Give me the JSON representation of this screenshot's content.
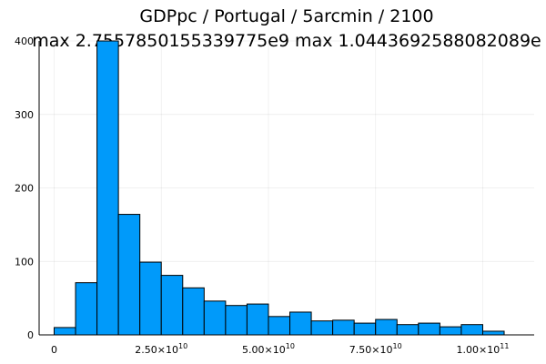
{
  "chart_data": {
    "type": "bar",
    "title": "GDPpc / Portugal / 5arcmin / 2100",
    "subtitle": "max 2.7557850155339775e9  max 1.0443692588082089e",
    "xlabel": "",
    "ylabel": "",
    "bin_width": 5000000000,
    "bins_start": 0,
    "values": [
      10,
      71,
      400,
      164,
      99,
      81,
      64,
      46,
      40,
      42,
      25,
      31,
      19,
      20,
      16,
      21,
      14,
      16,
      11,
      14,
      5
    ],
    "xlim": [
      -3500000000,
      112000000000
    ],
    "ylim": [
      0,
      400
    ],
    "x_ticks": [
      {
        "value": 0,
        "mantissa": "0",
        "exp": ""
      },
      {
        "value": 25000000000,
        "mantissa": "2.50×10",
        "exp": "10"
      },
      {
        "value": 50000000000,
        "mantissa": "5.00×10",
        "exp": "10"
      },
      {
        "value": 75000000000,
        "mantissa": "7.50×10",
        "exp": "10"
      },
      {
        "value": 100000000000,
        "mantissa": "1.00×10",
        "exp": "11"
      }
    ],
    "y_ticks": [
      {
        "value": 0,
        "label": "0"
      },
      {
        "value": 100,
        "label": "100"
      },
      {
        "value": 200,
        "label": "200"
      },
      {
        "value": 300,
        "label": "300"
      },
      {
        "value": 400,
        "label": "400"
      }
    ],
    "grid": true,
    "legend": "none",
    "bar_color": "#009AFA"
  }
}
